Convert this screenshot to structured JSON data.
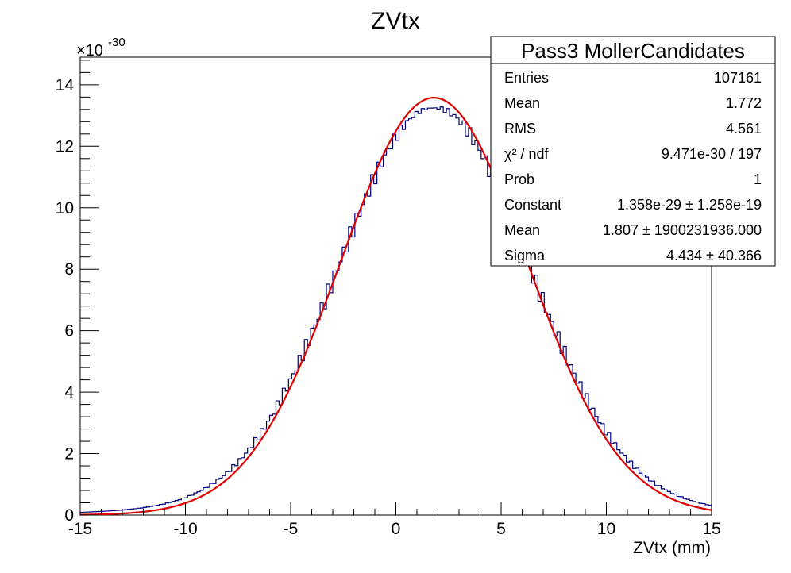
{
  "chart_data": {
    "type": "histogram",
    "title": "ZVtx",
    "xlabel": "ZVtx (mm)",
    "ylabel": "",
    "y_exponent_label": "×10",
    "y_exponent_power": "-30",
    "xlim": [
      -15,
      15
    ],
    "ylim": [
      0,
      14.9
    ],
    "x_ticks": [
      -15,
      -10,
      -5,
      0,
      5,
      10,
      15
    ],
    "x_tick_labels": [
      "-15",
      "-10",
      "-5",
      "0",
      "5",
      "10",
      "15"
    ],
    "y_ticks": [
      0,
      2,
      4,
      6,
      8,
      10,
      12,
      14
    ],
    "y_tick_labels": [
      "0",
      "2",
      "4",
      "6",
      "8",
      "10",
      "12",
      "14"
    ],
    "bins": 200,
    "series": [
      {
        "kind": "histogram",
        "color": "#00007f",
        "fit_params": {
          "constant": 13.58,
          "mean": 1.807,
          "sigma": 4.434
        }
      },
      {
        "kind": "gaussian-fit",
        "color": "#e00000",
        "constant": 13.58,
        "mean": 1.807,
        "sigma": 4.434
      }
    ],
    "stats_box": {
      "title": "Pass3 MollerCandidates",
      "rows": [
        {
          "label": "Entries",
          "value": "107161"
        },
        {
          "label": "Mean",
          "value": "1.772"
        },
        {
          "label": "RMS",
          "value": "4.561"
        },
        {
          "label": "χ² / ndf",
          "value": "9.471e-30 / 197"
        },
        {
          "label": "Prob",
          "value": "1"
        },
        {
          "label": "Constant",
          "value": "1.358e-29 ± 1.258e-19"
        },
        {
          "label": "Mean",
          "value": "1.807 ± 1900231936.000"
        },
        {
          "label": "Sigma",
          "value": "4.434 ± 40.366"
        }
      ]
    }
  }
}
